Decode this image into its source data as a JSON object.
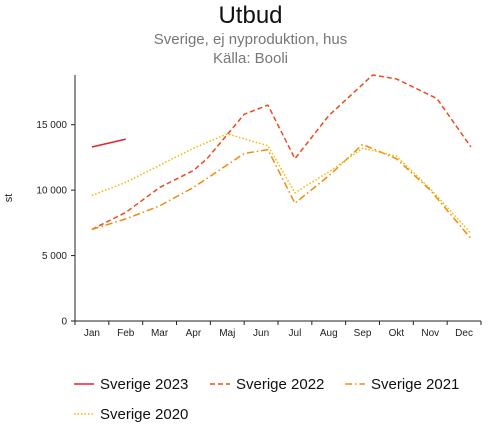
{
  "chart_data": {
    "type": "line",
    "title": "Utbud",
    "subtitle_lines": [
      "Sverige, ej nyproduktion, hus",
      "Källa: Booli"
    ],
    "xlabel": "",
    "ylabel": "st",
    "categories": [
      "Jan",
      "Feb",
      "Mar",
      "Apr",
      "Maj",
      "Jun",
      "Jul",
      "Aug",
      "Sep",
      "Okt",
      "Nov",
      "Dec"
    ],
    "y_ticks": [
      0,
      5000,
      10000,
      15000
    ],
    "y_tick_labels": [
      "0",
      "5 000",
      "10 000",
      "15 000"
    ],
    "ylim": [
      0,
      18800
    ],
    "grid": false,
    "legend_position": "bottom",
    "series": [
      {
        "name": "Sverige 2023",
        "color": "#e8222c",
        "dash": "solid",
        "points": [
          [
            0,
            13300
          ],
          [
            1,
            13900
          ]
        ]
      },
      {
        "name": "Sverige 2022",
        "color": "#ee4a1f",
        "dash": "dashed",
        "points": [
          [
            0,
            7000
          ],
          [
            1,
            8300
          ],
          [
            2,
            10200
          ],
          [
            3,
            11500
          ],
          [
            3.4,
            12400
          ],
          [
            4.5,
            15800
          ],
          [
            5.2,
            16500
          ],
          [
            6,
            12400
          ],
          [
            7,
            15700
          ],
          [
            8.3,
            18800
          ],
          [
            9,
            18500
          ],
          [
            10.2,
            17000
          ],
          [
            11.2,
            13300
          ]
        ]
      },
      {
        "name": "Sverige 2021",
        "color": "#f08a0a",
        "dash": "dashdot",
        "points": [
          [
            0,
            7000
          ],
          [
            1,
            7800
          ],
          [
            2,
            8800
          ],
          [
            3,
            10200
          ],
          [
            3.4,
            10900
          ],
          [
            4.5,
            12800
          ],
          [
            5.2,
            13100
          ],
          [
            6,
            9000
          ],
          [
            7,
            11100
          ],
          [
            8,
            13500
          ],
          [
            9,
            12400
          ],
          [
            10,
            10000
          ],
          [
            11.2,
            6300
          ]
        ]
      },
      {
        "name": "Sverige 2020",
        "color": "#f5b800",
        "dash": "dotted",
        "points": [
          [
            0,
            9600
          ],
          [
            1,
            10600
          ],
          [
            2,
            11900
          ],
          [
            3,
            13200
          ],
          [
            4,
            14300
          ],
          [
            5.2,
            13400
          ],
          [
            6,
            9800
          ],
          [
            7,
            11400
          ],
          [
            8,
            13200
          ],
          [
            9,
            12600
          ],
          [
            10,
            10100
          ],
          [
            11.2,
            6700
          ]
        ]
      }
    ]
  }
}
